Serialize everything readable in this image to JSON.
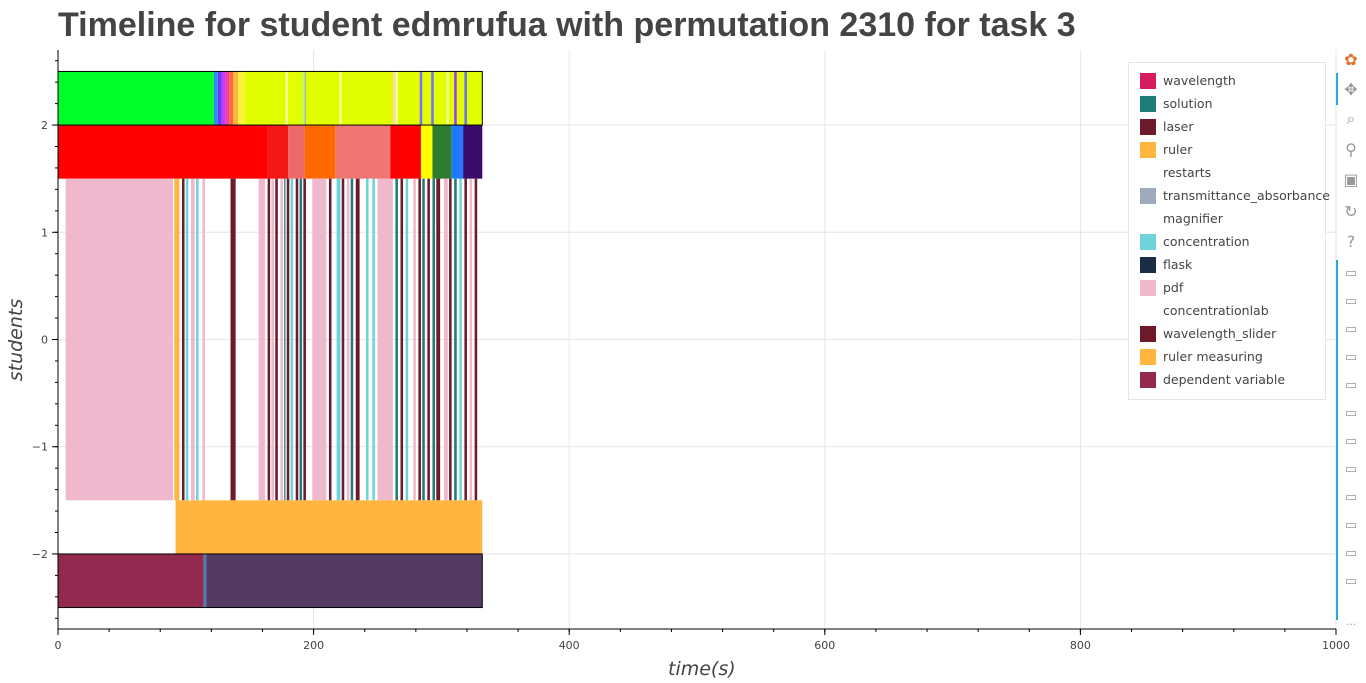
{
  "title": "Timeline for student edmrufua with permutation 2310 for task 3",
  "chart_data": {
    "type": "timeline",
    "title": "Timeline for student edmrufua with permutation 2310 for task 3",
    "xlabel": "time(s)",
    "ylabel": "students",
    "xlim": [
      0,
      1000
    ],
    "ylim": [
      -2.7,
      2.7
    ],
    "x_ticks": [
      0,
      200,
      400,
      600,
      800,
      1000
    ],
    "y_ticks": [
      -2,
      -1,
      0,
      1,
      2
    ],
    "x_tick_labels": [
      "0",
      "200",
      "400",
      "600",
      "800",
      "1000"
    ],
    "y_tick_labels": [
      "−2",
      "−1",
      "0",
      "1",
      "2"
    ],
    "grid": true,
    "legend_position": "top-right",
    "legend": [
      {
        "label": "wavelength",
        "color": "#d81b60"
      },
      {
        "label": "solution",
        "color": "#1e7d78"
      },
      {
        "label": "laser",
        "color": "#6d1a2a"
      },
      {
        "label": "ruler",
        "color": "#ffb53f"
      },
      {
        "label": "restarts",
        "color": "#ffffff"
      },
      {
        "label": "transmittance_absorbance",
        "color": "#9eacbd"
      },
      {
        "label": "magnifier",
        "color": "#ffffff"
      },
      {
        "label": "concentration",
        "color": "#6fd3de"
      },
      {
        "label": "flask",
        "color": "#1b2d45"
      },
      {
        "label": "pdf",
        "color": "#efb8cc"
      },
      {
        "label": "concentrationlab",
        "color": "#ffffff"
      },
      {
        "label": "wavelength_slider",
        "color": "#6d1a2a"
      },
      {
        "label": "ruler measuring",
        "color": "#ffb53f"
      },
      {
        "label": "dependent variable",
        "color": "#93294f"
      }
    ],
    "rows": [
      {
        "y": 2.25,
        "segments": [
          {
            "x0": 0,
            "x1": 122,
            "color": "#00ff2a"
          },
          {
            "x0": 122,
            "x1": 125,
            "color": "#2e8bff"
          },
          {
            "x0": 125,
            "x1": 128,
            "color": "#6a3cff"
          },
          {
            "x0": 128,
            "x1": 131,
            "color": "#c23dff"
          },
          {
            "x0": 131,
            "x1": 134,
            "color": "#ff3d9e"
          },
          {
            "x0": 134,
            "x1": 137,
            "color": "#ff6a3d"
          },
          {
            "x0": 137,
            "x1": 141,
            "color": "#ffb43d"
          },
          {
            "x0": 141,
            "x1": 146,
            "color": "#fff23d"
          },
          {
            "x0": 146,
            "x1": 332,
            "color": "#e2ff00"
          },
          {
            "x0": 178,
            "x1": 180,
            "color": "#f5ff9a"
          },
          {
            "x0": 190,
            "x1": 192,
            "color": "#c8ff40"
          },
          {
            "x0": 193,
            "x1": 194,
            "color": "#9aa8ff"
          },
          {
            "x0": 220,
            "x1": 222,
            "color": "#f5ff9a"
          },
          {
            "x0": 262,
            "x1": 264,
            "color": "#ffd9a8"
          },
          {
            "x0": 264,
            "x1": 266,
            "color": "#f5ff9a"
          },
          {
            "x0": 283,
            "x1": 285,
            "color": "#7a70ff"
          },
          {
            "x0": 292,
            "x1": 294,
            "color": "#7a70ff"
          },
          {
            "x0": 304,
            "x1": 306,
            "color": "#f5ff9a"
          },
          {
            "x0": 310,
            "x1": 312,
            "color": "#9a3cff"
          },
          {
            "x0": 318,
            "x1": 320,
            "color": "#6a70ff"
          }
        ]
      },
      {
        "y": 1.75,
        "segments": [
          {
            "x0": 0,
            "x1": 164,
            "color": "#ff0000"
          },
          {
            "x0": 164,
            "x1": 180,
            "color": "#f21616"
          },
          {
            "x0": 180,
            "x1": 193,
            "color": "#ee6a6a"
          },
          {
            "x0": 193,
            "x1": 217,
            "color": "#ff6a00"
          },
          {
            "x0": 217,
            "x1": 260,
            "color": "#f07575"
          },
          {
            "x0": 260,
            "x1": 284,
            "color": "#ff0000"
          },
          {
            "x0": 284,
            "x1": 293,
            "color": "#ffff00"
          },
          {
            "x0": 293,
            "x1": 308,
            "color": "#2e7d2e"
          },
          {
            "x0": 308,
            "x1": 317,
            "color": "#1f7aff"
          },
          {
            "x0": 317,
            "x1": 332,
            "color": "#3b0b6b"
          }
        ]
      },
      {
        "y": 0,
        "y_half": 1.5,
        "segments": [
          {
            "x0": 6,
            "x1": 90,
            "color": "#efb8cc"
          },
          {
            "x0": 91,
            "x1": 95,
            "color": "#ffb53f"
          },
          {
            "x0": 97,
            "x1": 99,
            "color": "#6d1a2a"
          },
          {
            "x0": 100,
            "x1": 102,
            "color": "#6fd3de"
          },
          {
            "x0": 104,
            "x1": 107,
            "color": "#efb8cc"
          },
          {
            "x0": 108,
            "x1": 110,
            "color": "#6fd3de"
          },
          {
            "x0": 113,
            "x1": 115,
            "color": "#efb8cc"
          },
          {
            "x0": 135,
            "x1": 139,
            "color": "#6d1a2a"
          },
          {
            "x0": 157,
            "x1": 162,
            "color": "#efb8cc"
          },
          {
            "x0": 164,
            "x1": 166,
            "color": "#6d1a2a"
          },
          {
            "x0": 167,
            "x1": 169,
            "color": "#efb8cc"
          },
          {
            "x0": 170,
            "x1": 172,
            "color": "#6d1a2a"
          },
          {
            "x0": 174,
            "x1": 176,
            "color": "#efb8cc"
          },
          {
            "x0": 177,
            "x1": 178,
            "color": "#1e7d78"
          },
          {
            "x0": 179,
            "x1": 181,
            "color": "#6d1a2a"
          },
          {
            "x0": 182,
            "x1": 184,
            "color": "#6fd3de"
          },
          {
            "x0": 186,
            "x1": 188,
            "color": "#6d1a2a"
          },
          {
            "x0": 189,
            "x1": 191,
            "color": "#1e7d78"
          },
          {
            "x0": 192,
            "x1": 194,
            "color": "#6d1a2a"
          },
          {
            "x0": 199,
            "x1": 210,
            "color": "#efb8cc"
          },
          {
            "x0": 212,
            "x1": 214,
            "color": "#6d1a2a"
          },
          {
            "x0": 218,
            "x1": 221,
            "color": "#6fd3de"
          },
          {
            "x0": 222,
            "x1": 224,
            "color": "#6d1a2a"
          },
          {
            "x0": 226,
            "x1": 228,
            "color": "#efb8cc"
          },
          {
            "x0": 229,
            "x1": 231,
            "color": "#1e7d78"
          },
          {
            "x0": 233,
            "x1": 236,
            "color": "#6d1a2a"
          },
          {
            "x0": 241,
            "x1": 243,
            "color": "#6fd3de"
          },
          {
            "x0": 246,
            "x1": 248,
            "color": "#6fd3de"
          },
          {
            "x0": 250,
            "x1": 262,
            "color": "#efb8cc"
          },
          {
            "x0": 264,
            "x1": 266,
            "color": "#1e7d78"
          },
          {
            "x0": 268,
            "x1": 270,
            "color": "#6d1a2a"
          },
          {
            "x0": 272,
            "x1": 274,
            "color": "#6fd3de"
          },
          {
            "x0": 278,
            "x1": 280,
            "color": "#efb8cc"
          },
          {
            "x0": 282,
            "x1": 284,
            "color": "#6d1a2a"
          },
          {
            "x0": 285,
            "x1": 287,
            "color": "#1e7d78"
          },
          {
            "x0": 289,
            "x1": 291,
            "color": "#6d1a2a"
          },
          {
            "x0": 293,
            "x1": 295,
            "color": "#1e7d78"
          },
          {
            "x0": 296,
            "x1": 299,
            "color": "#6d1a2a"
          },
          {
            "x0": 302,
            "x1": 305,
            "color": "#efb8cc"
          },
          {
            "x0": 306,
            "x1": 308,
            "color": "#6d1a2a"
          },
          {
            "x0": 310,
            "x1": 312,
            "color": "#1e7d78"
          },
          {
            "x0": 314,
            "x1": 316,
            "color": "#6fd3de"
          },
          {
            "x0": 318,
            "x1": 320,
            "color": "#6d1a2a"
          },
          {
            "x0": 322,
            "x1": 324,
            "color": "#efb8cc"
          },
          {
            "x0": 326,
            "x1": 328,
            "color": "#6d1a2a"
          }
        ]
      },
      {
        "y": -1.75,
        "segments": [
          {
            "x0": 92,
            "x1": 332,
            "color": "#ffb53f"
          }
        ]
      },
      {
        "y": -2.25,
        "segments": [
          {
            "x0": 0,
            "x1": 114,
            "color": "#93294f"
          },
          {
            "x0": 114,
            "x1": 116,
            "color": "#4a7bb5"
          },
          {
            "x0": 116,
            "x1": 332,
            "color": "#523a62"
          }
        ]
      }
    ],
    "outlined_rows": [
      {
        "y0": 2.0,
        "y1": 2.5,
        "x0": 0,
        "x1": 332
      },
      {
        "y0": -2.5,
        "y1": -2.0,
        "x0": 0,
        "x1": 332
      }
    ]
  },
  "toolbar": {
    "tools": [
      {
        "name": "bokeh-logo-icon",
        "glyph": "✿"
      },
      {
        "name": "pan-tool-icon",
        "glyph": "✥"
      },
      {
        "name": "zoom-tool-icon",
        "glyph": "⌕"
      },
      {
        "name": "wheel-zoom-tool-icon",
        "glyph": "⚲"
      },
      {
        "name": "save-tool-icon",
        "glyph": "▣"
      },
      {
        "name": "reset-tool-icon",
        "glyph": "↻"
      },
      {
        "name": "help-tool-icon",
        "glyph": "?"
      },
      {
        "name": "hover-tool-icon",
        "glyph": "▭"
      }
    ],
    "more_glyph": "···"
  }
}
